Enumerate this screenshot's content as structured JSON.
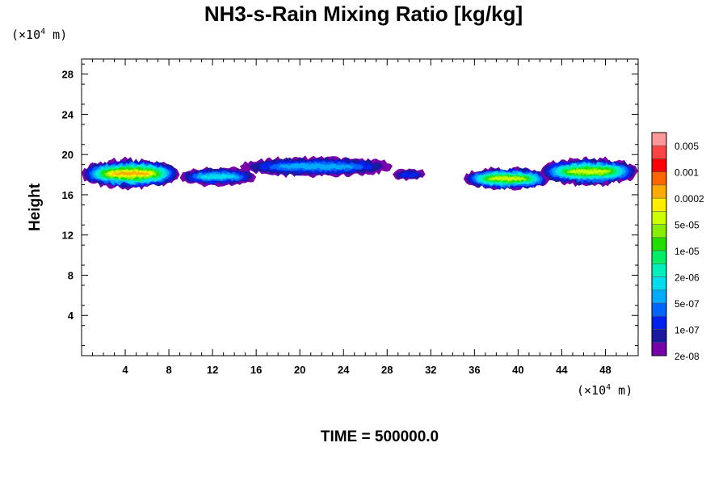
{
  "chart_data": {
    "type": "heatmap",
    "title": "NH3-s-Rain Mixing Ratio [kg/kg]",
    "ylabel": "Height",
    "xlabel": "",
    "x_unit": {
      "prefix": "(×10",
      "exp": "4",
      "suffix": " m)"
    },
    "y_unit": {
      "prefix": "(×10",
      "exp": "4",
      "suffix": " m)"
    },
    "xlim": [
      0,
      51
    ],
    "ylim": [
      0,
      29.5
    ],
    "x_ticks": [
      4,
      8,
      12,
      16,
      20,
      24,
      28,
      32,
      36,
      40,
      44,
      48
    ],
    "y_ticks": [
      4,
      8,
      12,
      16,
      20,
      24,
      28
    ],
    "colorbar_labels": [
      "0.005",
      "0.001",
      "0.0002",
      "5e-05",
      "1e-05",
      "2e-06",
      "5e-07",
      "1e-07",
      "2e-08"
    ],
    "colorbar_colors": [
      "#ff9999",
      "#ff4444",
      "#ff0000",
      "#ff6600",
      "#ffaa00",
      "#ffee00",
      "#ccff00",
      "#88ee00",
      "#22dd00",
      "#00ee66",
      "#00eebb",
      "#00ddee",
      "#00aaff",
      "#0066ff",
      "#0022ee",
      "#1a1aa0",
      "#7700aa"
    ],
    "regions": [
      {
        "x": [
          0.0,
          9.0
        ],
        "y_center": 18.1,
        "y_half": 1.4,
        "peak_level": 12
      },
      {
        "x": [
          9.0,
          16.0
        ],
        "y_center": 17.8,
        "y_half": 0.9,
        "peak_level": 5
      },
      {
        "x": [
          14.5,
          28.5
        ],
        "y_center": 18.8,
        "y_half": 1.0,
        "peak_level": 4
      },
      {
        "x": [
          28.5,
          31.5
        ],
        "y_center": 18.0,
        "y_half": 0.6,
        "peak_level": 2
      },
      {
        "x": [
          35.0,
          43.0
        ],
        "y_center": 17.6,
        "y_half": 1.1,
        "peak_level": 10
      },
      {
        "x": [
          42.0,
          51.0
        ],
        "y_center": 18.3,
        "y_half": 1.3,
        "peak_level": 10
      }
    ],
    "time_label": "TIME = 500000.0"
  }
}
